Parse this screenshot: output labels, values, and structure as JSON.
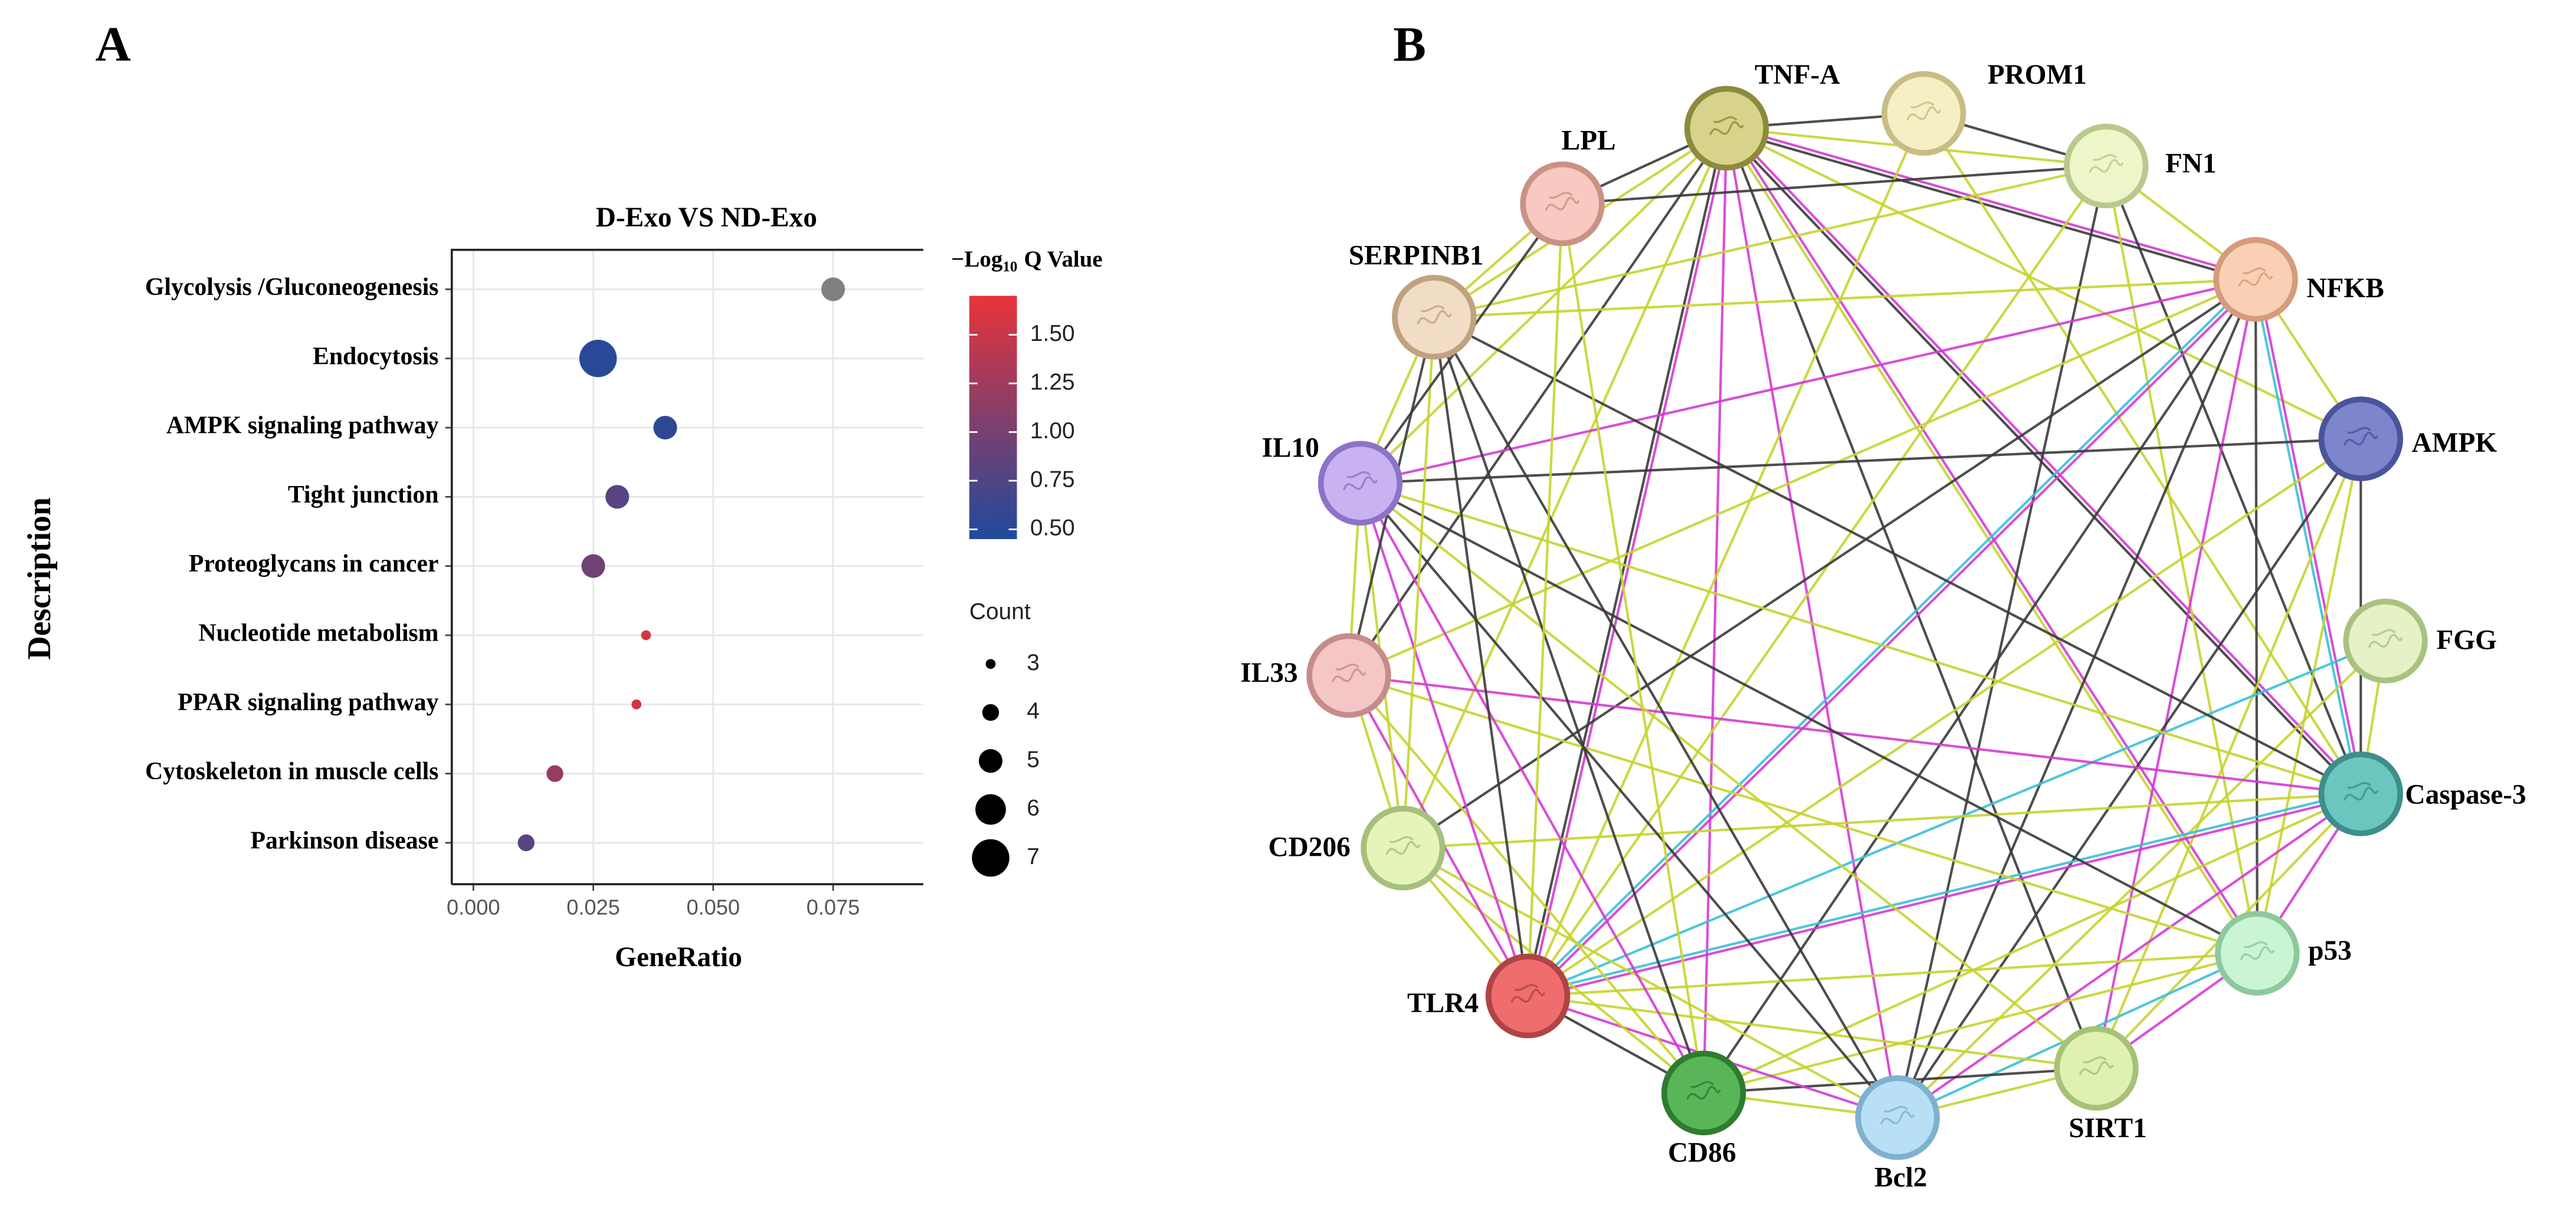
{
  "chart_data": [
    {
      "type": "dot",
      "panel_label": "A",
      "title": "D-Exo  VS  ND-Exo",
      "x_label": "GeneRatio",
      "y_label": "Description",
      "categories": [
        "Glycolysis /Gluconeogenesis",
        "Endocytosis",
        "AMPK signaling pathway",
        "Tight junction",
        "Proteoglycans in cancer",
        "Nucleotide metabolism",
        "PPAR signaling pathway",
        "Cytoskeleton in muscle cells",
        "Parkinson disease"
      ],
      "gene_ratio": [
        0.075,
        0.026,
        0.04,
        0.03,
        0.025,
        0.036,
        0.034,
        0.017,
        0.011
      ],
      "count": [
        5,
        7,
        5,
        5,
        5,
        3,
        3,
        4,
        4
      ],
      "q_value": [
        null,
        0.5,
        0.55,
        0.8,
        0.95,
        1.6,
        1.55,
        1.2,
        0.8
      ],
      "na_color": "#808080",
      "xlim": [
        -0.0045,
        0.0938
      ],
      "xticks": [
        {
          "value": 0,
          "label": "0.000"
        },
        {
          "value": 0.025,
          "label": "0.025"
        },
        {
          "value": 0.05,
          "label": "0.050"
        },
        {
          "value": 0.075,
          "label": "0.075"
        }
      ],
      "grid": true,
      "colorbar_title": [
        "−Log",
        "10",
        "Q Value"
      ],
      "colormap": [
        "#1f4a9c",
        "#e8333a"
      ],
      "clim": [
        0.45,
        1.7
      ],
      "cticks": [
        {
          "value": 0.5,
          "label": "0.50"
        },
        {
          "value": 0.75,
          "label": "0.75"
        },
        {
          "value": 1.0,
          "label": "1.00"
        },
        {
          "value": 1.25,
          "label": "1.25"
        },
        {
          "value": 1.5,
          "label": "1.50"
        }
      ],
      "size_title": "Count",
      "size_ticks": [
        3,
        4,
        5,
        6,
        7
      ]
    },
    {
      "type": "network",
      "panel_label": "B",
      "nodes": [
        {
          "label": "TNF-A",
          "color": "#d8d38a",
          "border": "#8d8a3d"
        },
        {
          "label": "PROM1",
          "color": "#f7efc4",
          "border": "#c8bd85"
        },
        {
          "label": "FN1",
          "color": "#eef6c9",
          "border": "#b9c98d"
        },
        {
          "label": "NFKB",
          "color": "#f9d0b4",
          "border": "#d79a7c"
        },
        {
          "label": "AMPK",
          "color": "#7d85cd",
          "border": "#4b549b"
        },
        {
          "label": "FGG",
          "color": "#e5f2c5",
          "border": "#a9c283"
        },
        {
          "label": "Caspase-3",
          "color": "#6cc6c0",
          "border": "#3e8e8a"
        },
        {
          "label": "p53",
          "color": "#c9f5d5",
          "border": "#8dc99c"
        },
        {
          "label": "SIRT1",
          "color": "#dff1b0",
          "border": "#a6c277"
        },
        {
          "label": "Bcl2",
          "color": "#b9dff5",
          "border": "#7fb1cf"
        },
        {
          "label": "CD86",
          "color": "#58b659",
          "border": "#2e7c30"
        },
        {
          "label": "TLR4",
          "color": "#ef6d6d",
          "border": "#b04444"
        },
        {
          "label": "CD206",
          "color": "#e5f4b8",
          "border": "#a6c07c"
        },
        {
          "label": "IL33",
          "color": "#f5c6c6",
          "border": "#c68b8b"
        },
        {
          "label": "IL10",
          "color": "#c9b2f2",
          "border": "#8c73c7"
        },
        {
          "label": "SERPINB1",
          "color": "#f1dcc6",
          "border": "#bfa27f"
        },
        {
          "label": "LPL",
          "color": "#f7c9c0",
          "border": "#c99285"
        }
      ],
      "edges": [
        [
          0,
          1,
          "#3a3a3a"
        ],
        [
          0,
          2,
          "#c5d42c"
        ],
        [
          0,
          3,
          "#d43bd4"
        ],
        [
          0,
          3,
          "#3a3a3a"
        ],
        [
          0,
          4,
          "#c5d42c"
        ],
        [
          0,
          6,
          "#d43bd4"
        ],
        [
          0,
          6,
          "#3a3a3a"
        ],
        [
          0,
          7,
          "#d43bd4"
        ],
        [
          0,
          7,
          "#c5d42c"
        ],
        [
          0,
          8,
          "#3a3a3a"
        ],
        [
          0,
          9,
          "#d43bd4"
        ],
        [
          0,
          10,
          "#d43bd4"
        ],
        [
          0,
          11,
          "#d43bd4"
        ],
        [
          0,
          11,
          "#3a3a3a"
        ],
        [
          0,
          12,
          "#c5d42c"
        ],
        [
          0,
          13,
          "#3a3a3a"
        ],
        [
          0,
          14,
          "#c5d42c"
        ],
        [
          0,
          15,
          "#c5d42c"
        ],
        [
          0,
          16,
          "#3a3a3a"
        ],
        [
          1,
          2,
          "#3a3a3a"
        ],
        [
          1,
          6,
          "#c5d42c"
        ],
        [
          1,
          11,
          "#c5d42c"
        ],
        [
          2,
          3,
          "#c5d42c"
        ],
        [
          2,
          6,
          "#3a3a3a"
        ],
        [
          2,
          7,
          "#c5d42c"
        ],
        [
          2,
          9,
          "#3a3a3a"
        ],
        [
          2,
          11,
          "#c5d42c"
        ],
        [
          2,
          15,
          "#c5d42c"
        ],
        [
          2,
          16,
          "#3a3a3a"
        ],
        [
          3,
          4,
          "#c5d42c"
        ],
        [
          3,
          6,
          "#d43bd4"
        ],
        [
          3,
          6,
          "#3cc0d8"
        ],
        [
          3,
          7,
          "#3a3a3a"
        ],
        [
          3,
          8,
          "#d43bd4"
        ],
        [
          3,
          9,
          "#3a3a3a"
        ],
        [
          3,
          10,
          "#3a3a3a"
        ],
        [
          3,
          11,
          "#d43bd4"
        ],
        [
          3,
          11,
          "#3cc0d8"
        ],
        [
          3,
          12,
          "#3a3a3a"
        ],
        [
          3,
          13,
          "#c5d42c"
        ],
        [
          3,
          14,
          "#d43bd4"
        ],
        [
          3,
          15,
          "#c5d42c"
        ],
        [
          4,
          6,
          "#3a3a3a"
        ],
        [
          4,
          7,
          "#c5d42c"
        ],
        [
          4,
          8,
          "#c5d42c"
        ],
        [
          4,
          9,
          "#3a3a3a"
        ],
        [
          4,
          11,
          "#c5d42c"
        ],
        [
          4,
          14,
          "#3a3a3a"
        ],
        [
          5,
          6,
          "#c5d42c"
        ],
        [
          5,
          11,
          "#3cc0d8"
        ],
        [
          5,
          9,
          "#c5d42c"
        ],
        [
          6,
          7,
          "#d43bd4"
        ],
        [
          6,
          8,
          "#c5d42c"
        ],
        [
          6,
          9,
          "#d43bd4"
        ],
        [
          6,
          10,
          "#c5d42c"
        ],
        [
          6,
          11,
          "#d43bd4"
        ],
        [
          6,
          11,
          "#3cc0d8"
        ],
        [
          6,
          12,
          "#c5d42c"
        ],
        [
          6,
          13,
          "#d43bd4"
        ],
        [
          6,
          14,
          "#c5d42c"
        ],
        [
          6,
          15,
          "#3a3a3a"
        ],
        [
          7,
          8,
          "#d43bd4"
        ],
        [
          7,
          9,
          "#3cc0d8"
        ],
        [
          7,
          10,
          "#c5d42c"
        ],
        [
          7,
          11,
          "#c5d42c"
        ],
        [
          7,
          13,
          "#c5d42c"
        ],
        [
          7,
          14,
          "#3a3a3a"
        ],
        [
          8,
          9,
          "#c5d42c"
        ],
        [
          8,
          10,
          "#3a3a3a"
        ],
        [
          8,
          11,
          "#c5d42c"
        ],
        [
          8,
          14,
          "#c5d42c"
        ],
        [
          9,
          10,
          "#c5d42c"
        ],
        [
          9,
          11,
          "#d43bd4"
        ],
        [
          9,
          12,
          "#c5d42c"
        ],
        [
          9,
          14,
          "#3a3a3a"
        ],
        [
          9,
          15,
          "#3a3a3a"
        ],
        [
          10,
          11,
          "#3a3a3a"
        ],
        [
          10,
          12,
          "#c5d42c"
        ],
        [
          10,
          13,
          "#c5d42c"
        ],
        [
          10,
          14,
          "#d43bd4"
        ],
        [
          10,
          15,
          "#3a3a3a"
        ],
        [
          10,
          16,
          "#c5d42c"
        ],
        [
          11,
          12,
          "#c5d42c"
        ],
        [
          11,
          13,
          "#d43bd4"
        ],
        [
          11,
          14,
          "#d43bd4"
        ],
        [
          11,
          15,
          "#3a3a3a"
        ],
        [
          11,
          16,
          "#c5d42c"
        ],
        [
          12,
          13,
          "#c5d42c"
        ],
        [
          12,
          14,
          "#c5d42c"
        ],
        [
          12,
          15,
          "#c5d42c"
        ],
        [
          13,
          14,
          "#c5d42c"
        ],
        [
          13,
          15,
          "#3a3a3a"
        ],
        [
          14,
          15,
          "#c5d42c"
        ],
        [
          15,
          16,
          "#c5d42c"
        ],
        [
          14,
          16,
          "#3a3a3a"
        ]
      ]
    }
  ]
}
